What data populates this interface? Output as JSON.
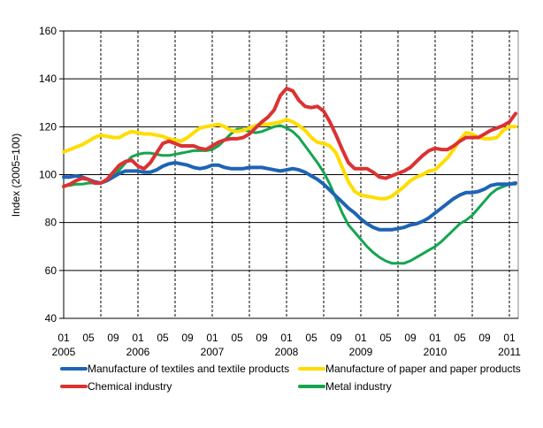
{
  "chart_data": {
    "type": "line",
    "title": "",
    "xlabel": "",
    "ylabel": "Index (2005=100)",
    "ylim": [
      40,
      160
    ],
    "yticks": [
      "40",
      "60",
      "80",
      "100",
      "120",
      "140",
      "160"
    ],
    "grid": "horizontal solid, vertical dashed every 6 months",
    "legend_position": "bottom",
    "x_start": "2005-01",
    "x_end": "2011-02",
    "x_tick_labels": [
      {
        "month": "01",
        "year": "2005"
      },
      {
        "month": "05",
        "year": ""
      },
      {
        "month": "09",
        "year": ""
      },
      {
        "month": "01",
        "year": "2006"
      },
      {
        "month": "05",
        "year": ""
      },
      {
        "month": "09",
        "year": ""
      },
      {
        "month": "01",
        "year": "2007"
      },
      {
        "month": "05",
        "year": ""
      },
      {
        "month": "09",
        "year": ""
      },
      {
        "month": "01",
        "year": "2008"
      },
      {
        "month": "05",
        "year": ""
      },
      {
        "month": "09",
        "year": ""
      },
      {
        "month": "01",
        "year": "2009"
      },
      {
        "month": "05",
        "year": ""
      },
      {
        "month": "09",
        "year": ""
      },
      {
        "month": "01",
        "year": "2010"
      },
      {
        "month": "05",
        "year": ""
      },
      {
        "month": "09",
        "year": ""
      },
      {
        "month": "01",
        "year": "2011"
      }
    ],
    "series": [
      {
        "name": "Manufacture of textiles and textile products",
        "color": "#1f64b4",
        "values": [
          99,
          99,
          99.5,
          99,
          98,
          97,
          96.5,
          97.5,
          99,
          100.5,
          101.5,
          101.5,
          101.5,
          101,
          101,
          102,
          103.5,
          104.5,
          105,
          104.5,
          104,
          103,
          102.5,
          103,
          104,
          104,
          103,
          102.5,
          102.5,
          102.5,
          103,
          103,
          103,
          102.5,
          102,
          101.5,
          102,
          102.5,
          102,
          101,
          99.5,
          98,
          96,
          93.5,
          91,
          88.5,
          86,
          84,
          81.5,
          79.5,
          78,
          77,
          77,
          77,
          77.5,
          78,
          79,
          79.5,
          80.5,
          82,
          84,
          86,
          88,
          90,
          91.5,
          92.5,
          92.5,
          93,
          94,
          95.5,
          96,
          96,
          96,
          96.5
        ]
      },
      {
        "name": "Manufacture of paper and paper products",
        "color": "#ffdd00",
        "values": [
          109.5,
          110.5,
          111.5,
          112.5,
          114,
          115.5,
          116.5,
          116,
          115.5,
          115.5,
          117,
          118,
          117.5,
          117,
          117,
          116.5,
          116,
          115,
          114.5,
          114,
          115.5,
          117.5,
          119.5,
          120,
          120.5,
          121,
          120,
          118.5,
          118,
          118.5,
          119.5,
          120.5,
          121,
          121,
          121.5,
          122,
          123,
          122,
          120.5,
          118.5,
          115.5,
          113.5,
          113,
          112,
          109,
          103,
          97,
          93,
          91.5,
          91,
          90.5,
          90,
          90,
          91,
          93,
          95,
          97.5,
          99,
          100,
          101.5,
          102,
          104.5,
          107,
          110.5,
          114.5,
          117.5,
          117,
          115.5,
          115,
          115,
          115.5,
          118.5,
          120,
          120
        ]
      },
      {
        "name": "Chemical industry",
        "color": "#dc3232",
        "values": [
          95,
          96,
          97.5,
          98.5,
          98,
          96.5,
          96.5,
          98,
          101,
          104,
          105.5,
          106,
          103.5,
          102.5,
          105,
          109,
          113,
          114,
          113,
          112,
          112,
          112,
          111,
          110.5,
          112,
          113.5,
          114.5,
          115,
          115,
          115.5,
          117,
          119.5,
          122,
          124,
          127,
          133,
          136,
          135,
          131,
          128.5,
          128,
          128.5,
          126.5,
          122,
          116.5,
          110.5,
          105,
          102.5,
          102.5,
          102.5,
          101,
          99,
          98.5,
          99.5,
          100.5,
          101.5,
          103,
          105.5,
          108,
          110,
          111,
          110.5,
          110.5,
          112,
          114,
          115.5,
          115.5,
          115.5,
          117,
          118.5,
          119.5,
          120.5,
          122,
          125.5
        ]
      },
      {
        "name": "Metal industry",
        "color": "#14a550",
        "values": [
          95.5,
          95.5,
          96,
          96,
          96.5,
          96.5,
          96.5,
          97.5,
          99.5,
          102,
          105,
          107.5,
          108.5,
          109,
          109,
          108.5,
          108,
          108,
          108.5,
          109,
          109.5,
          110,
          110,
          110,
          110.5,
          112,
          114.5,
          117,
          119,
          119,
          118,
          117.5,
          118,
          119,
          120,
          120.5,
          119.5,
          118,
          115.5,
          112,
          108.5,
          105,
          101,
          96,
          90,
          84,
          79,
          76,
          73,
          70,
          67.5,
          65.5,
          64,
          63,
          63,
          63,
          64,
          65.5,
          67,
          68.5,
          70,
          72,
          74.5,
          77,
          79.5,
          81,
          83,
          86,
          89,
          92,
          94,
          95,
          96,
          96
        ]
      }
    ]
  }
}
